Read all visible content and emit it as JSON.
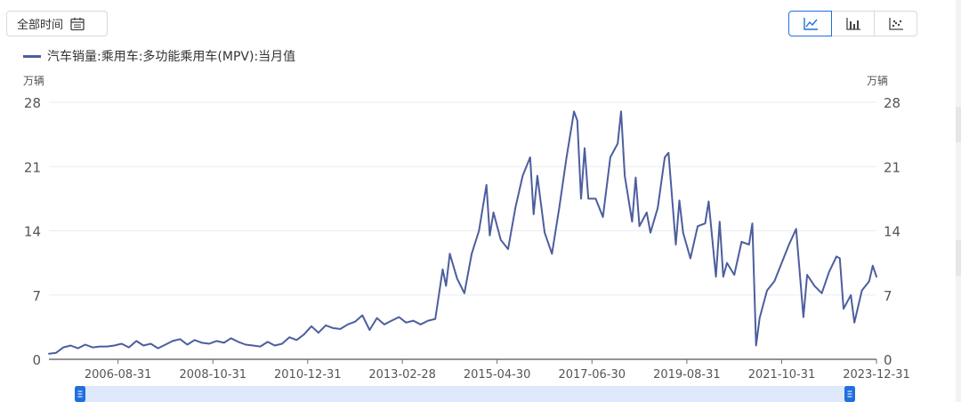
{
  "controls": {
    "range_label": "全部时间",
    "range_icon": "calendar-icon",
    "chart_types": [
      {
        "name": "line-chart-icon",
        "active": true
      },
      {
        "name": "bar-chart-icon",
        "active": false
      },
      {
        "name": "scatter-chart-icon",
        "active": false
      }
    ]
  },
  "colors": {
    "series": "#4d5e9e",
    "accent": "#1f6fe0",
    "grid": "#e8ebf0",
    "slider_fill": "#dde8fb"
  },
  "chart_data": {
    "type": "line",
    "title": "",
    "xlabel": "",
    "ylabel": "万辆",
    "ylabel_right": "万辆",
    "ylim": [
      0,
      28
    ],
    "yticks": [
      0,
      7,
      14,
      21,
      28
    ],
    "x_tick_labels": [
      "2006-08-31",
      "2008-10-31",
      "2010-12-31",
      "2013-02-28",
      "2015-04-30",
      "2017-06-30",
      "2019-08-31",
      "2021-10-31",
      "2023-12-31"
    ],
    "x_range": [
      "2005-01-31",
      "2023-12-31"
    ],
    "grid": true,
    "legend_position": "top-left",
    "series": [
      {
        "name": "汽车销量:乘用车:多功能乘用车(MPV):当月值",
        "points": [
          [
            "2005-01-31",
            0.6
          ],
          [
            "2005-03-31",
            0.7
          ],
          [
            "2005-05-31",
            1.3
          ],
          [
            "2005-07-31",
            1.5
          ],
          [
            "2005-09-30",
            1.2
          ],
          [
            "2005-11-30",
            1.6
          ],
          [
            "2006-01-31",
            1.3
          ],
          [
            "2006-03-31",
            1.4
          ],
          [
            "2006-05-31",
            1.4
          ],
          [
            "2006-07-31",
            1.5
          ],
          [
            "2006-09-30",
            1.7
          ],
          [
            "2006-11-30",
            1.3
          ],
          [
            "2007-01-31",
            2.0
          ],
          [
            "2007-03-31",
            1.5
          ],
          [
            "2007-05-31",
            1.7
          ],
          [
            "2007-07-31",
            1.2
          ],
          [
            "2007-09-30",
            1.6
          ],
          [
            "2007-11-30",
            2.0
          ],
          [
            "2008-01-31",
            2.2
          ],
          [
            "2008-03-31",
            1.6
          ],
          [
            "2008-05-31",
            2.1
          ],
          [
            "2008-07-31",
            1.8
          ],
          [
            "2008-09-30",
            1.7
          ],
          [
            "2008-11-30",
            2.0
          ],
          [
            "2009-01-31",
            1.8
          ],
          [
            "2009-03-31",
            2.3
          ],
          [
            "2009-05-31",
            1.9
          ],
          [
            "2009-07-31",
            1.6
          ],
          [
            "2009-09-30",
            1.5
          ],
          [
            "2009-11-30",
            1.4
          ],
          [
            "2010-01-31",
            1.9
          ],
          [
            "2010-03-31",
            1.5
          ],
          [
            "2010-05-31",
            1.7
          ],
          [
            "2010-07-31",
            2.4
          ],
          [
            "2010-09-30",
            2.1
          ],
          [
            "2010-11-30",
            2.7
          ],
          [
            "2011-01-31",
            3.6
          ],
          [
            "2011-03-31",
            2.9
          ],
          [
            "2011-05-31",
            3.7
          ],
          [
            "2011-07-31",
            3.4
          ],
          [
            "2011-09-30",
            3.3
          ],
          [
            "2011-11-30",
            3.8
          ],
          [
            "2012-01-31",
            4.1
          ],
          [
            "2012-03-31",
            4.8
          ],
          [
            "2012-05-31",
            3.2
          ],
          [
            "2012-07-31",
            4.5
          ],
          [
            "2012-09-30",
            3.8
          ],
          [
            "2012-11-30",
            4.2
          ],
          [
            "2013-01-31",
            4.6
          ],
          [
            "2013-03-31",
            4.0
          ],
          [
            "2013-05-31",
            4.2
          ],
          [
            "2013-07-31",
            3.8
          ],
          [
            "2013-09-30",
            4.2
          ],
          [
            "2013-11-30",
            4.4
          ],
          [
            "2014-01-31",
            9.8
          ],
          [
            "2014-02-28",
            8.0
          ],
          [
            "2014-03-31",
            11.5
          ],
          [
            "2014-05-31",
            8.8
          ],
          [
            "2014-07-31",
            7.2
          ],
          [
            "2014-09-30",
            11.5
          ],
          [
            "2014-11-30",
            14.0
          ],
          [
            "2015-01-31",
            19.0
          ],
          [
            "2015-02-28",
            13.5
          ],
          [
            "2015-03-31",
            16.0
          ],
          [
            "2015-05-31",
            13.0
          ],
          [
            "2015-07-31",
            12.0
          ],
          [
            "2015-09-30",
            16.5
          ],
          [
            "2015-11-30",
            20.0
          ],
          [
            "2016-01-31",
            22.0
          ],
          [
            "2016-02-29",
            15.8
          ],
          [
            "2016-03-31",
            20.0
          ],
          [
            "2016-05-31",
            13.8
          ],
          [
            "2016-07-31",
            11.5
          ],
          [
            "2016-09-30",
            16.5
          ],
          [
            "2016-11-30",
            22.0
          ],
          [
            "2017-01-31",
            27.0
          ],
          [
            "2017-02-28",
            26.0
          ],
          [
            "2017-03-31",
            17.5
          ],
          [
            "2017-04-30",
            23.0
          ],
          [
            "2017-05-31",
            17.5
          ],
          [
            "2017-07-31",
            17.5
          ],
          [
            "2017-09-30",
            15.5
          ],
          [
            "2017-11-30",
            22.0
          ],
          [
            "2018-01-31",
            23.5
          ],
          [
            "2018-02-28",
            27.0
          ],
          [
            "2018-03-31",
            20.0
          ],
          [
            "2018-05-31",
            15.0
          ],
          [
            "2018-06-30",
            19.8
          ],
          [
            "2018-07-31",
            14.5
          ],
          [
            "2018-09-30",
            16.0
          ],
          [
            "2018-10-31",
            13.8
          ],
          [
            "2018-12-31",
            16.5
          ],
          [
            "2019-02-28",
            22.0
          ],
          [
            "2019-03-31",
            22.5
          ],
          [
            "2019-05-31",
            12.5
          ],
          [
            "2019-06-30",
            17.3
          ],
          [
            "2019-07-31",
            13.8
          ],
          [
            "2019-09-30",
            11.0
          ],
          [
            "2019-11-30",
            14.5
          ],
          [
            "2020-01-31",
            14.8
          ],
          [
            "2020-02-29",
            17.2
          ],
          [
            "2020-04-30",
            9.0
          ],
          [
            "2020-05-31",
            15.0
          ],
          [
            "2020-06-30",
            9.0
          ],
          [
            "2020-07-31",
            10.5
          ],
          [
            "2020-09-30",
            9.2
          ],
          [
            "2020-11-30",
            12.8
          ],
          [
            "2021-01-31",
            12.5
          ],
          [
            "2021-02-28",
            14.8
          ],
          [
            "2021-03-31",
            1.5
          ],
          [
            "2021-04-30",
            4.5
          ],
          [
            "2021-06-30",
            7.5
          ],
          [
            "2021-08-31",
            8.5
          ],
          [
            "2021-10-31",
            10.5
          ],
          [
            "2021-12-31",
            12.5
          ],
          [
            "2022-02-28",
            14.2
          ],
          [
            "2022-04-30",
            4.6
          ],
          [
            "2022-05-31",
            9.2
          ],
          [
            "2022-07-31",
            8.0
          ],
          [
            "2022-09-30",
            7.2
          ],
          [
            "2022-11-30",
            9.5
          ],
          [
            "2023-01-31",
            11.2
          ],
          [
            "2023-02-28",
            11.0
          ],
          [
            "2023-03-31",
            5.5
          ],
          [
            "2023-05-31",
            7.0
          ],
          [
            "2023-06-30",
            4.0
          ],
          [
            "2023-08-31",
            7.5
          ],
          [
            "2023-10-31",
            8.5
          ],
          [
            "2023-11-30",
            10.2
          ],
          [
            "2023-12-31",
            9.0
          ]
        ]
      }
    ]
  }
}
